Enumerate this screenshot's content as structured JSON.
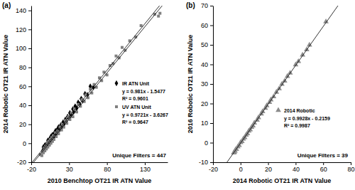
{
  "chart_data": [
    {
      "type": "scatter",
      "panel_label": "(a)",
      "x_label": "2010 Benchtop OT21 IR ATN Value",
      "y_label": "2014 Robotic OT21 IR ATN Value",
      "xlim": [
        -20,
        160
      ],
      "xticks": [
        -20,
        30,
        80,
        130
      ],
      "ylim": [
        -20,
        145
      ],
      "yticks": [
        -20,
        0,
        20,
        40,
        60,
        80,
        100,
        120,
        140
      ],
      "legend": "right",
      "annotation": "Unique Filters = 447",
      "series": [
        {
          "name": "IR ATN Unit",
          "color": "#000000",
          "marker": "diamond",
          "equation": "y = 0.981x - 1.5477",
          "r_squared": "R² = 0.9601",
          "slope": 0.981,
          "intercept": -1.5477,
          "x": [
            -5,
            -4,
            -3,
            -2,
            -1,
            0,
            1,
            2,
            3,
            4,
            5,
            6,
            7,
            8,
            9,
            10,
            11,
            12,
            13,
            14,
            15,
            16,
            18,
            19,
            20,
            22,
            23,
            25,
            26,
            28,
            30,
            31,
            33,
            35,
            36,
            38,
            40,
            42,
            44,
            46,
            48,
            51,
            54,
            58,
            62
          ],
          "values": [
            -8,
            -4,
            -6,
            -2,
            -4,
            -1,
            -2,
            3,
            0,
            4,
            2,
            7,
            4,
            9,
            6,
            10,
            8,
            13,
            10,
            14,
            12,
            17,
            15,
            19,
            17,
            22,
            20,
            25,
            23,
            28,
            27,
            32,
            30,
            36,
            33,
            39,
            37,
            43,
            41,
            47,
            45,
            52,
            51,
            60,
            59
          ]
        },
        {
          "name": "UV ATN Unit",
          "color": "#808080",
          "marker": "square",
          "equation": "y = 0.9721x - 3.6267",
          "r_squared": "R² = 0.9647",
          "slope": 0.9721,
          "intercept": -3.6267,
          "x": [
            -8,
            -6,
            -5,
            -4,
            -3,
            -2,
            -1,
            0,
            1,
            2,
            3,
            4,
            5,
            6,
            7,
            8,
            9,
            10,
            12,
            13,
            15,
            16,
            18,
            20,
            21,
            23,
            25,
            27,
            29,
            31,
            33,
            35,
            37,
            40,
            42,
            45,
            47,
            50,
            52,
            55,
            58,
            60,
            63,
            66,
            70,
            73,
            76,
            80,
            84,
            88,
            92,
            96,
            100,
            104,
            110,
            118,
            125,
            143,
            148,
            150
          ],
          "values": [
            -12,
            -13,
            -8,
            -10,
            -5,
            -8,
            -3,
            -6,
            0,
            -4,
            2,
            -2,
            4,
            0,
            6,
            2,
            8,
            4,
            11,
            7,
            13,
            10,
            17,
            14,
            20,
            17,
            24,
            21,
            28,
            25,
            32,
            28,
            36,
            33,
            41,
            39,
            46,
            44,
            51,
            48,
            57,
            53,
            62,
            59,
            69,
            66,
            75,
            72,
            82,
            84,
            92,
            90,
            101,
            98,
            108,
            112,
            124,
            136,
            134,
            137
          ]
        }
      ]
    },
    {
      "type": "scatter",
      "panel_label": "(b)",
      "x_label": "2014 Robotic OT21 IR ATN Value",
      "y_label": "2016 Robotic OT21 IR ATN Value",
      "xlim": [
        -20,
        80
      ],
      "xticks": [
        -20,
        0,
        20,
        40,
        60,
        80
      ],
      "ylim": [
        -10,
        70
      ],
      "yticks": [
        -10,
        0,
        10,
        20,
        30,
        40,
        50,
        60,
        70
      ],
      "legend": "right",
      "annotation": "Unique Filters = 39",
      "series": [
        {
          "name": "2014 Robotic",
          "color": "#8c8c8c",
          "marker": "triangle",
          "equation": "y = 0.9928x - 0.2159",
          "r_squared": "R² = 0.9987",
          "slope": 0.9928,
          "intercept": -0.2159,
          "x": [
            -5,
            -4.5,
            -4,
            -3.5,
            -3,
            -2,
            -1,
            0,
            1,
            2,
            3,
            4,
            5,
            6,
            7,
            8,
            9,
            10,
            12,
            13,
            15,
            16,
            18,
            19,
            21,
            22,
            24,
            26,
            28,
            30,
            32,
            34,
            36,
            40,
            42,
            45,
            48,
            50,
            62
          ],
          "values": [
            -5.2,
            -4.9,
            -4.3,
            -3.4,
            -3.4,
            -2.1,
            -1.4,
            0.1,
            0.6,
            1.9,
            2.6,
            3.9,
            4.6,
            6.0,
            6.6,
            7.9,
            8.6,
            10.1,
            11.5,
            12.8,
            14.7,
            15.9,
            17.6,
            18.9,
            20.6,
            21.9,
            23.5,
            25.8,
            27.6,
            29.9,
            31.5,
            33.9,
            35.6,
            39.8,
            41.5,
            44.8,
            47.5,
            49.9,
            61.8
          ]
        }
      ]
    }
  ]
}
